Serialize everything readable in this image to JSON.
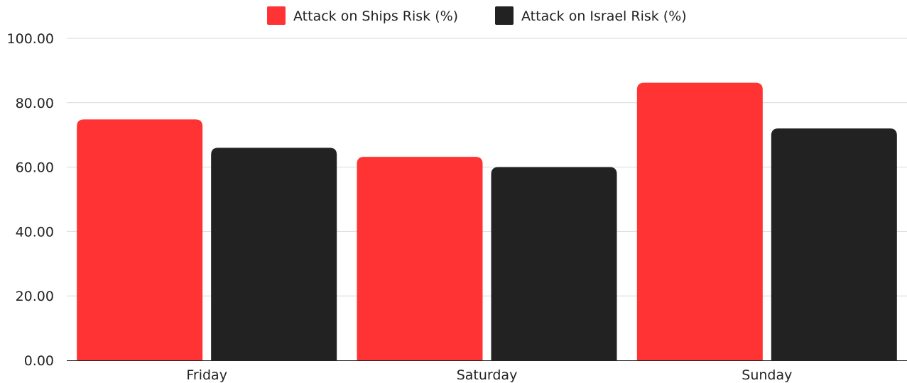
{
  "chart_data": {
    "type": "bar",
    "categories": [
      "Friday",
      "Saturday",
      "Sunday"
    ],
    "series": [
      {
        "name": "Attack on Ships Risk (%)",
        "color": "#ff3333",
        "values": [
          74.8,
          63.2,
          86.2
        ]
      },
      {
        "name": "Attack on Israel Risk (%)",
        "color": "#222222",
        "values": [
          66.0,
          60.0,
          72.0
        ]
      }
    ],
    "yticks": [
      "0.00",
      "20.00",
      "40.00",
      "60.00",
      "80.00",
      "100.00"
    ],
    "ylim": [
      0,
      100
    ],
    "grid": true,
    "gridline_color": "#d9d9d9",
    "legend_position": "top-center"
  }
}
